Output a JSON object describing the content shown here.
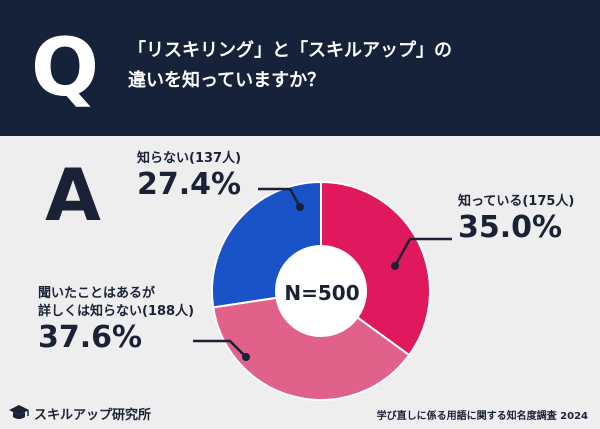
{
  "header": {
    "q_letter": "Q",
    "question_line1": "「リスキリング」と「スキルアップ」の",
    "question_line2": "違いを知っていますか？"
  },
  "answer_letter": "A",
  "chart_data": {
    "type": "pie",
    "donut": true,
    "center_label": "N=500",
    "slices": [
      {
        "label": "知っている",
        "count_label": "(175人)",
        "value": 35.0,
        "value_label": "35.0%",
        "color": "#e0195f"
      },
      {
        "label": "聞いたことはあるが詳しくは知らない",
        "label_line1": "聞いたことはあるが",
        "label_line2": "詳しくは知らない",
        "count_label": "(188人)",
        "value": 37.6,
        "value_label": "37.6%",
        "color": "#e0628a"
      },
      {
        "label": "知らない",
        "count_label": "(137人)",
        "value": 27.4,
        "value_label": "27.4%",
        "color": "#1a52c8"
      }
    ]
  },
  "footer": {
    "brand": "スキルアップ研究所",
    "source": "学び直しに係る用語に関する知名度調査 2024"
  },
  "icons": {
    "brand": "graduation-cap-icon"
  }
}
